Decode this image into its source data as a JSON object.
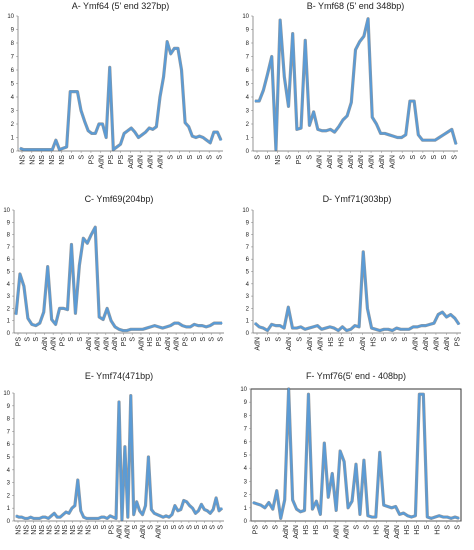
{
  "chart_data": [
    {
      "type": "line",
      "title": "A- Ymf64 (5' end 327bp)",
      "ylim": [
        0,
        10
      ],
      "yticks": [
        0,
        1,
        2,
        3,
        4,
        5,
        6,
        7,
        8,
        9,
        10
      ],
      "xtick_labels": [
        "NS",
        "NS",
        "NS",
        "NS",
        "NS",
        "S",
        "S",
        "PS",
        "AdN",
        "PS",
        "PS",
        "AdN",
        "AdN",
        "AdN",
        "AdN",
        "S",
        "S",
        "S",
        "S",
        "S",
        "S"
      ],
      "color": "#5b9bd5",
      "values": [
        0.2,
        0.1,
        0.1,
        0.1,
        0.1,
        0.1,
        0.1,
        0.1,
        0.1,
        0.1,
        0.8,
        0.1,
        0.2,
        0.3,
        4.4,
        4.4,
        4.4,
        3.0,
        2.2,
        1.5,
        1.3,
        1.3,
        2.0,
        2.0,
        1.0,
        6.2,
        0.1,
        0.3,
        0.5,
        1.3,
        1.5,
        1.7,
        1.4,
        1.0,
        1.2,
        1.4,
        1.7,
        1.6,
        1.8,
        4.0,
        5.5,
        8.1,
        7.2,
        7.6,
        7.6,
        6.0,
        2.1,
        1.8,
        1.1,
        1.0,
        1.1,
        1.0,
        0.8,
        0.6,
        1.4,
        1.4,
        0.8
      ]
    },
    {
      "type": "line",
      "title": "B- Ymf68 (5' end 348bp)",
      "ylim": [
        0,
        10
      ],
      "yticks": [
        0,
        1,
        2,
        3,
        4,
        5,
        6,
        7,
        8,
        9,
        10
      ],
      "xtick_labels": [
        "S",
        "S",
        "NS",
        "S",
        "PS",
        "S",
        "AdN",
        "AdN",
        "AdN",
        "AdN",
        "AdN",
        "AdN",
        "AdN",
        "AdN",
        "S",
        "S",
        "S",
        "S",
        "S",
        "S"
      ],
      "color": "#5b9bd5",
      "values": [
        3.7,
        3.7,
        4.5,
        5.7,
        7.0,
        0.1,
        9.7,
        5.5,
        3.3,
        8.7,
        1.6,
        1.7,
        8.2,
        1.9,
        2.9,
        1.6,
        1.5,
        1.5,
        1.6,
        1.4,
        1.8,
        2.3,
        2.6,
        3.6,
        7.5,
        8.1,
        8.5,
        9.8,
        2.5,
        2.0,
        1.3,
        1.3,
        1.2,
        1.1,
        1.0,
        1.0,
        1.2,
        3.7,
        3.7,
        1.2,
        0.8,
        0.8,
        0.8,
        0.8,
        1.0,
        1.2,
        1.4,
        1.6,
        0.5
      ]
    },
    {
      "type": "line",
      "title": "C- Ymf69(204bp)",
      "ylim": [
        0,
        10
      ],
      "yticks": [
        0,
        1,
        2,
        3,
        4,
        5,
        6,
        7,
        8,
        9,
        10
      ],
      "xtick_labels": [
        "PS",
        "S",
        "S",
        "AdN",
        "AdN",
        "PS",
        "S",
        "S",
        "AdN",
        "AdN",
        "AdN",
        "AdN",
        "PS",
        "S",
        "AdN",
        "HS",
        "PS",
        "AdN",
        "AdN",
        "PS",
        "S",
        "S",
        "S",
        "S"
      ],
      "color": "#5b9bd5",
      "values": [
        1.5,
        4.8,
        3.8,
        1.2,
        0.7,
        0.6,
        0.8,
        1.7,
        5.4,
        1.1,
        0.7,
        2.0,
        2.0,
        1.9,
        7.2,
        1.6,
        5.5,
        7.7,
        7.3,
        8.0,
        8.6,
        1.3,
        1.1,
        2.0,
        1.0,
        0.5,
        0.3,
        0.2,
        0.2,
        0.3,
        0.3,
        0.3,
        0.3,
        0.4,
        0.5,
        0.6,
        0.5,
        0.4,
        0.5,
        0.6,
        0.8,
        0.8,
        0.6,
        0.5,
        0.5,
        0.7,
        0.6,
        0.6,
        0.5,
        0.6,
        0.8,
        0.8,
        0.8
      ]
    },
    {
      "type": "line",
      "title": "D- Ymf71(303bp)",
      "ylim": [
        0,
        10
      ],
      "yticks": [
        0,
        1,
        2,
        3,
        4,
        5,
        6,
        7,
        8,
        9,
        10
      ],
      "xtick_labels": [
        "AdN",
        "S",
        "S",
        "AdN",
        "S",
        "AdN",
        "AdN",
        "HS",
        "HS",
        "S",
        "AdN",
        "HS",
        "S",
        "S",
        "S",
        "AdN",
        "AdN",
        "AdN",
        "AdN",
        "PS"
      ],
      "color": "#5b9bd5",
      "values": [
        0.8,
        0.5,
        0.4,
        0.2,
        0.7,
        0.6,
        0.6,
        0.4,
        2.1,
        0.4,
        0.4,
        0.5,
        0.3,
        0.4,
        0.5,
        0.6,
        0.3,
        0.4,
        0.5,
        0.4,
        0.2,
        0.5,
        0.2,
        0.3,
        0.6,
        0.5,
        6.6,
        2.0,
        0.4,
        0.3,
        0.2,
        0.3,
        0.3,
        0.2,
        0.4,
        0.3,
        0.3,
        0.3,
        0.5,
        0.5,
        0.6,
        0.6,
        0.7,
        0.8,
        1.5,
        1.7,
        1.3,
        1.5,
        1.2,
        0.7
      ]
    },
    {
      "type": "line",
      "title": "E- Ymf74(471bp)",
      "ylim": [
        0,
        10
      ],
      "yticks": [
        0,
        1,
        2,
        3,
        4,
        5,
        6,
        7,
        8,
        9,
        10
      ],
      "xtick_labels": [
        "NS",
        "NS",
        "NS",
        "NS",
        "NS",
        "NS",
        "NS",
        "NS",
        "NS",
        "NS",
        "S",
        "S",
        "PS",
        "AdN",
        "AdN",
        "S",
        "AdN",
        "S",
        "AdN",
        "S",
        "S",
        "S",
        "S",
        "S",
        "S",
        "S",
        "S"
      ],
      "color": "#5b9bd5",
      "values": [
        0.4,
        0.3,
        0.3,
        0.2,
        0.2,
        0.3,
        0.2,
        0.2,
        0.2,
        0.3,
        0.3,
        0.2,
        0.4,
        0.6,
        0.3,
        0.3,
        0.5,
        0.7,
        0.6,
        1.0,
        1.2,
        3.2,
        0.8,
        0.3,
        0.2,
        0.2,
        0.2,
        0.2,
        0.2,
        0.3,
        0.3,
        0.2,
        0.4,
        0.3,
        0.2,
        9.3,
        0.1,
        5.8,
        0.3,
        9.8,
        0.5,
        1.5,
        0.8,
        0.5,
        1.2,
        5.0,
        0.9,
        0.6,
        0.5,
        0.4,
        0.3,
        0.4,
        0.3,
        0.5,
        1.2,
        0.8,
        0.9,
        1.6,
        1.5,
        1.2,
        1.0,
        0.6,
        0.8,
        1.3,
        0.9,
        0.8,
        0.6,
        0.9,
        1.8,
        0.8,
        1.0
      ]
    },
    {
      "type": "line",
      "title": "F- Ymf76(5' end - 408bp)",
      "ylim": [
        0,
        10
      ],
      "yticks": [
        0,
        1,
        2,
        3,
        4,
        5,
        6,
        7,
        8,
        9,
        10
      ],
      "xtick_labels": [
        "PS",
        "S",
        "S",
        "AdN",
        "AdN",
        "HS",
        "HS",
        "S",
        "AdN",
        "AdN",
        "S",
        "S",
        "HS",
        "AdN",
        "AdN",
        "HS",
        "HS",
        "S",
        "HS",
        "S",
        "S"
      ],
      "color": "#5b9bd5",
      "values": [
        1.4,
        1.3,
        1.2,
        1.0,
        1.4,
        0.9,
        2.3,
        0.2,
        1.6,
        10.0,
        1.6,
        0.9,
        0.7,
        0.8,
        9.6,
        0.9,
        1.5,
        0.5,
        5.9,
        1.8,
        3.6,
        0.8,
        5.3,
        4.5,
        1.0,
        1.5,
        4.3,
        0.5,
        4.6,
        0.4,
        0.3,
        0.3,
        5.2,
        1.2,
        1.1,
        1.0,
        1.1,
        0.5,
        0.6,
        0.4,
        0.3,
        0.4,
        9.6,
        9.6,
        0.3,
        0.2,
        0.3,
        0.4,
        0.3,
        0.3,
        0.2,
        0.3,
        0.2
      ]
    }
  ]
}
